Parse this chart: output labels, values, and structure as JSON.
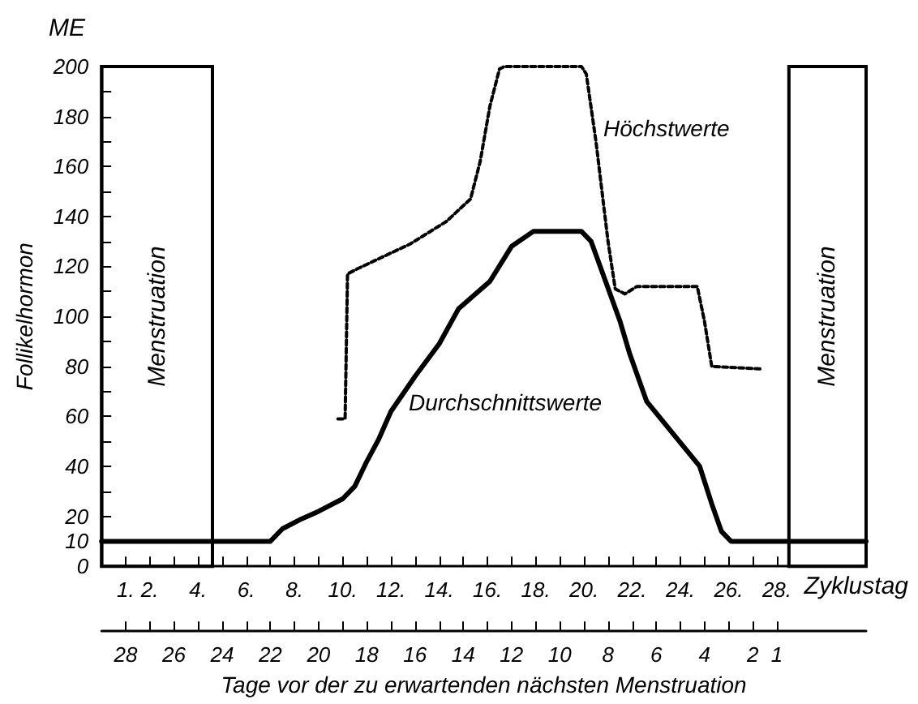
{
  "chart_data": {
    "type": "line",
    "xlabel": "Zyklustag",
    "ylabel": "Follikelhormon",
    "x2label": "Tage vor der zu erwartenden nächsten Menstruation",
    "annotations": [
      "ME"
    ],
    "xlim": [
      0,
      31.7
    ],
    "xticks": [
      {
        "value": 1,
        "label": "1."
      },
      {
        "value": 2,
        "label": "2."
      },
      {
        "value": 3,
        "label": null
      },
      {
        "value": 4,
        "label": "4."
      },
      {
        "value": 5,
        "label": null
      },
      {
        "value": 6,
        "label": "6."
      },
      {
        "value": 7,
        "label": null
      },
      {
        "value": 8,
        "label": "8."
      },
      {
        "value": 9,
        "label": null
      },
      {
        "value": 10,
        "label": "10."
      },
      {
        "value": 11,
        "label": null
      },
      {
        "value": 12,
        "label": "12."
      },
      {
        "value": 13,
        "label": null
      },
      {
        "value": 14,
        "label": "14."
      },
      {
        "value": 15,
        "label": null
      },
      {
        "value": 16,
        "label": "16."
      },
      {
        "value": 17,
        "label": null
      },
      {
        "value": 18,
        "label": "18."
      },
      {
        "value": 19,
        "label": null
      },
      {
        "value": 20,
        "label": "20."
      },
      {
        "value": 21,
        "label": null
      },
      {
        "value": 22,
        "label": "22."
      },
      {
        "value": 23,
        "label": null
      },
      {
        "value": 24,
        "label": "24."
      },
      {
        "value": 25,
        "label": null
      },
      {
        "value": 26,
        "label": "26."
      },
      {
        "value": 27,
        "label": null
      },
      {
        "value": 28,
        "label": "28."
      }
    ],
    "x2lim": [
      29,
      -2.7
    ],
    "x2ticks": [
      28,
      {
        "value": 27,
        "label": null
      },
      26,
      {
        "value": 25,
        "label": null
      },
      24,
      {
        "value": 23,
        "label": null
      },
      22,
      {
        "value": 21,
        "label": null
      },
      20,
      {
        "value": 19,
        "label": null
      },
      18,
      {
        "value": 17,
        "label": null
      },
      16,
      {
        "value": 15,
        "label": null
      },
      14,
      {
        "value": 13,
        "label": null
      },
      12,
      {
        "value": 11,
        "label": null
      },
      10,
      {
        "value": 9,
        "label": null
      },
      8,
      {
        "value": 7,
        "label": null
      },
      6,
      {
        "value": 5,
        "label": null
      },
      4,
      {
        "value": 3,
        "label": null
      },
      2,
      1
    ],
    "ylim": [
      0,
      200
    ],
    "yticks": [
      0,
      10,
      20,
      {
        "value": 30,
        "label": null
      },
      40,
      {
        "value": 50,
        "label": null
      },
      60,
      {
        "value": 70,
        "label": null
      },
      80,
      {
        "value": 90,
        "label": null
      },
      100,
      {
        "value": 110,
        "label": null
      },
      120,
      {
        "value": 130,
        "label": null
      },
      140,
      {
        "value": 150,
        "label": null
      },
      160,
      {
        "value": 170,
        "label": null
      },
      180,
      {
        "value": 190,
        "label": null
      },
      200
    ],
    "marker": "none",
    "bands": [
      {
        "axis": "x",
        "from": 0,
        "to": 4.6,
        "label": "Menstruation",
        "color": "#ffffff"
      },
      {
        "axis": "x",
        "from": 28.5,
        "to": 31.7,
        "label": "Menstruation",
        "color": "#ffffff"
      }
    ],
    "series": [
      {
        "name": "Durchschnittswerte",
        "color": "#000000",
        "line_style": "solid",
        "x": [
          0,
          7,
          7.5,
          8.3,
          9,
          10,
          10.5,
          11,
          11.5,
          12,
          13,
          14,
          14.8,
          16.1,
          17,
          17.9,
          19.9,
          20.3,
          21.5,
          21.9,
          22.6,
          23.7,
          24.8,
          25.3,
          25.7,
          26.1,
          28.5,
          31.7
        ],
        "values": [
          10,
          10,
          15,
          19,
          22,
          27,
          32,
          42,
          51,
          62,
          76,
          89,
          103,
          114,
          128,
          134,
          134,
          130,
          98,
          85,
          66,
          53,
          40,
          25,
          14,
          10,
          10,
          10
        ]
      },
      {
        "name": "Höchstwerte",
        "color": "#000000",
        "line_style": "dashed",
        "x": [
          9.8,
          10.1,
          10.2,
          10.6,
          12.8,
          14.3,
          15.3,
          15.7,
          16.1,
          16.5,
          16.7,
          19.9,
          20.1,
          20.5,
          21,
          21.3,
          21.7,
          22.2,
          24.7,
          25,
          25.3,
          27.3
        ],
        "values": [
          59,
          59,
          117,
          119,
          129,
          138,
          147,
          162,
          184,
          199,
          200,
          200,
          197,
          170,
          130,
          111,
          109,
          112,
          112,
          98,
          80,
          79
        ]
      }
    ]
  }
}
